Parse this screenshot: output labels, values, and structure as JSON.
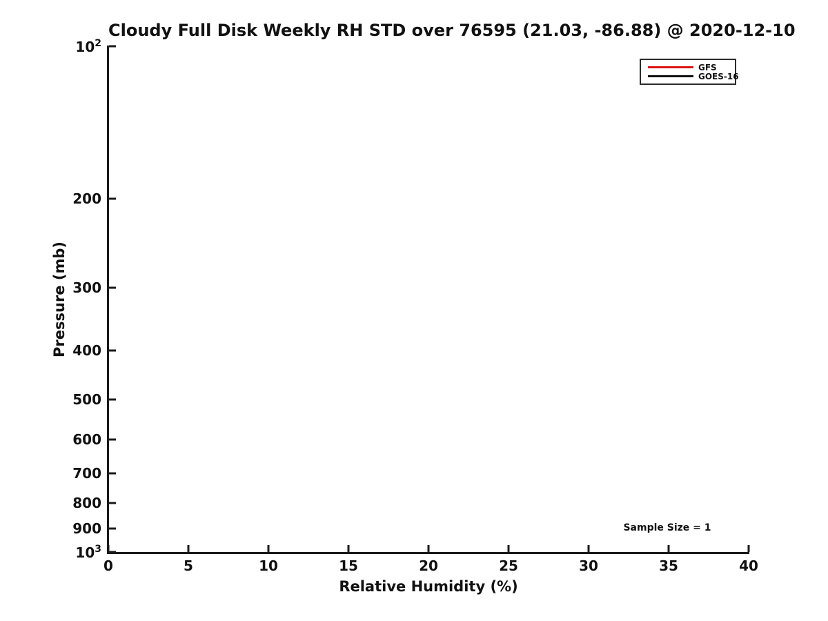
{
  "figure": {
    "title": "Cloudy Full Disk Weekly RH STD over 76595 (21.03, -86.88) @ 2020-12-10",
    "xlabel": "Relative Humidity (%)",
    "ylabel": "Pressure (mb)",
    "annotation": "Sample Size = 1"
  },
  "legend": {
    "entries": [
      {
        "label": "GFS",
        "color": "#dd1111"
      },
      {
        "label": "GOES-16",
        "color": "#111111"
      }
    ]
  },
  "colors": {
    "axis": "#1a1a1a",
    "text": "#111111",
    "gfs_line": "#dd1111",
    "goes16_line": "#111111"
  },
  "chart_data": {
    "type": "line",
    "title": "Cloudy Full Disk Weekly RH STD over 76595 (21.03, -86.88) @ 2020-12-10",
    "xlabel": "Relative Humidity (%)",
    "ylabel": "Pressure (mb)",
    "xlim": [
      0,
      40
    ],
    "ylim": [
      100,
      1000
    ],
    "x_scale": "linear",
    "y_scale": "log",
    "y_inverted": true,
    "grid": false,
    "tick_direction": "in",
    "x_ticks": [
      {
        "value": 0,
        "label": "0"
      },
      {
        "value": 5,
        "label": "5"
      },
      {
        "value": 10,
        "label": "10"
      },
      {
        "value": 15,
        "label": "15"
      },
      {
        "value": 20,
        "label": "20"
      },
      {
        "value": 25,
        "label": "25"
      },
      {
        "value": 30,
        "label": "30"
      },
      {
        "value": 35,
        "label": "35"
      },
      {
        "value": 40,
        "label": "40"
      }
    ],
    "y_ticks": [
      {
        "value": 100,
        "label": "10^2"
      },
      {
        "value": 200,
        "label": "200"
      },
      {
        "value": 300,
        "label": "300"
      },
      {
        "value": 400,
        "label": "400"
      },
      {
        "value": 500,
        "label": "500"
      },
      {
        "value": 600,
        "label": "600"
      },
      {
        "value": 700,
        "label": "700"
      },
      {
        "value": 800,
        "label": "800"
      },
      {
        "value": 900,
        "label": "900"
      },
      {
        "value": 1000,
        "label": "10^3"
      }
    ],
    "series": [
      {
        "name": "GFS",
        "color": "#dd1111",
        "x": [],
        "y": []
      },
      {
        "name": "GOES-16",
        "color": "#111111",
        "x": [],
        "y": []
      }
    ],
    "legend_position": "upper right",
    "annotations": [
      {
        "text": "Sample Size = 1"
      }
    ]
  }
}
